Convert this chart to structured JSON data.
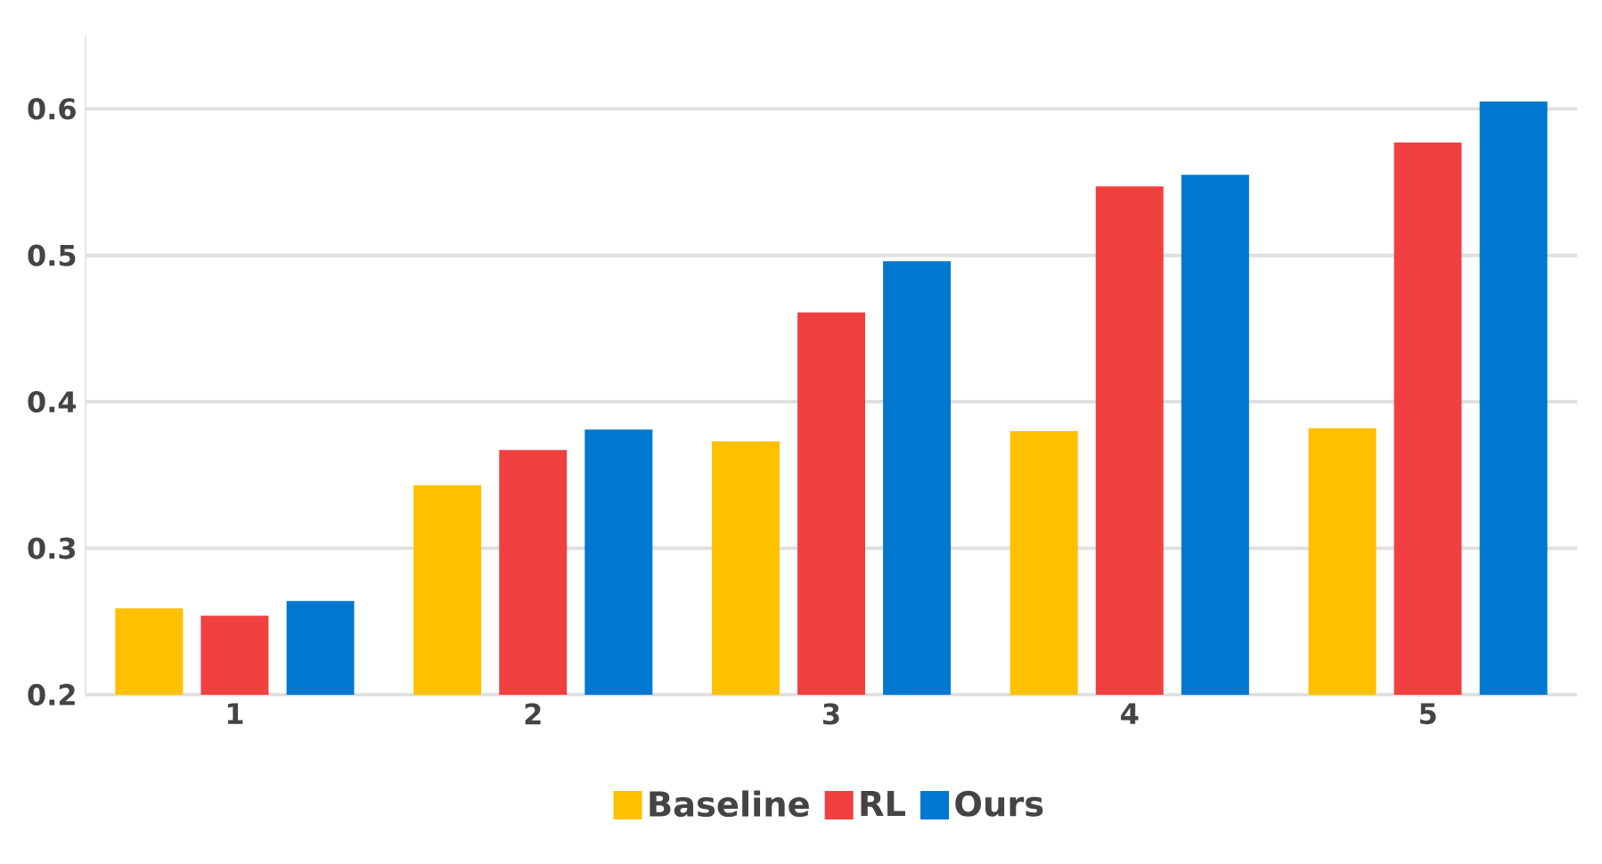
{
  "chart_data": {
    "type": "bar",
    "categories": [
      "1",
      "2",
      "3",
      "4",
      "5"
    ],
    "series": [
      {
        "name": "Baseline",
        "color": "#ffc000",
        "values": [
          0.259,
          0.343,
          0.373,
          0.38,
          0.382
        ]
      },
      {
        "name": "RL",
        "color": "#f04040",
        "values": [
          0.254,
          0.367,
          0.461,
          0.547,
          0.577
        ]
      },
      {
        "name": "Ours",
        "color": "#0078d0",
        "values": [
          0.264,
          0.381,
          0.496,
          0.555,
          0.605
        ]
      }
    ],
    "ylim": [
      0.2,
      0.65
    ],
    "yticks": [
      0.2,
      0.3,
      0.4,
      0.5,
      0.6
    ],
    "grid": "y",
    "legend": "bottom"
  }
}
